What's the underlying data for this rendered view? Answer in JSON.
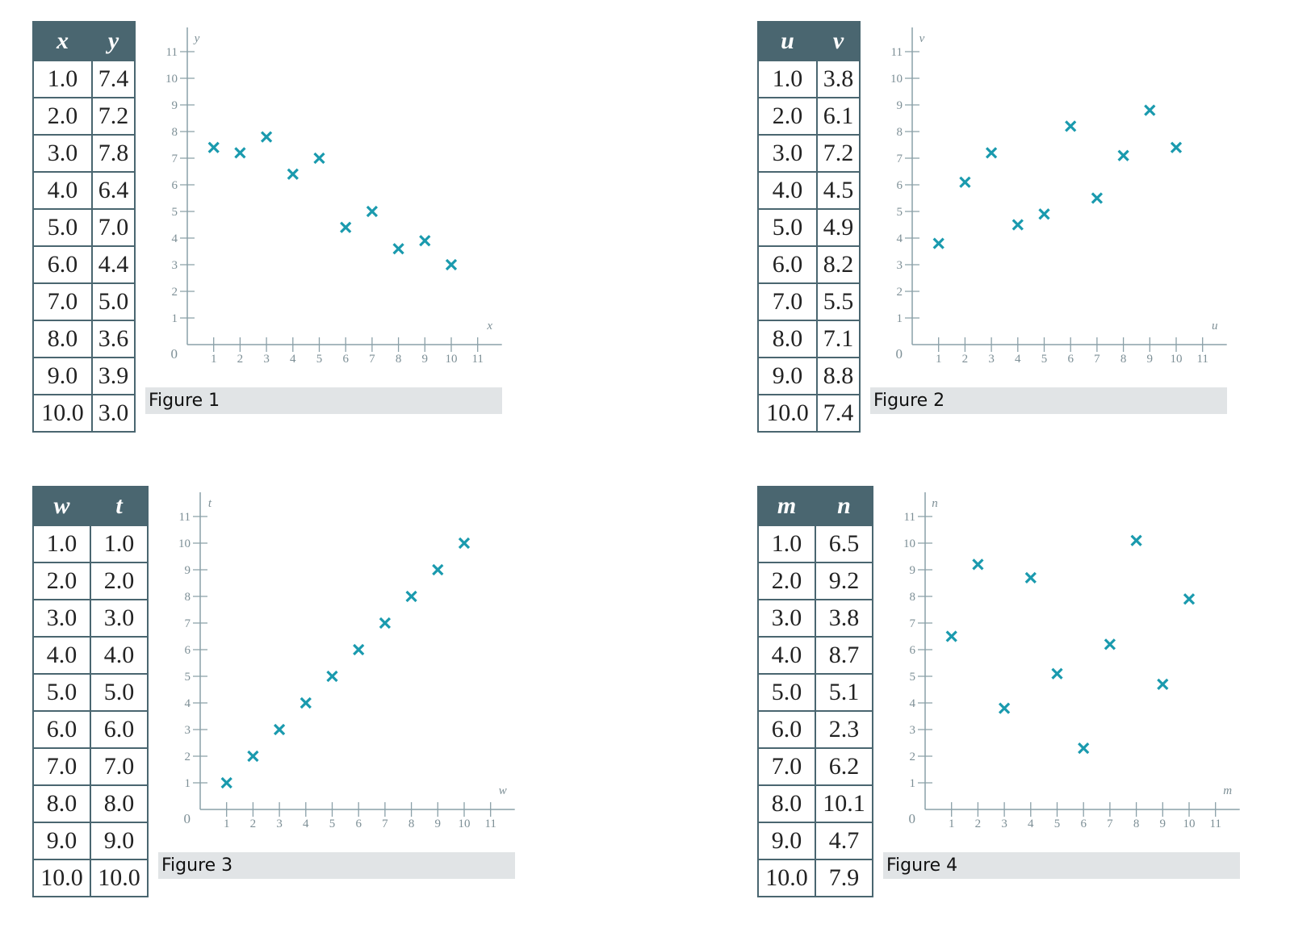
{
  "chart_data": [
    {
      "type": "scatter",
      "title": "",
      "caption": "Figure 1",
      "xlabel": "x",
      "ylabel": "y",
      "xlim": [
        0,
        11
      ],
      "ylim": [
        0,
        11
      ],
      "x_ticks": [
        "1",
        "2",
        "3",
        "4",
        "5",
        "6",
        "7",
        "8",
        "9",
        "10",
        "11"
      ],
      "y_ticks": [
        "1",
        "2",
        "3",
        "4",
        "5",
        "6",
        "7",
        "8",
        "9",
        "10",
        "11"
      ],
      "origin_label": "0",
      "marker_color": "#1a9aae",
      "table_headers": [
        "x",
        "y"
      ],
      "x": [
        1,
        2,
        3,
        4,
        5,
        6,
        7,
        8,
        9,
        10
      ],
      "y": [
        7.4,
        7.2,
        7.8,
        6.4,
        7.0,
        4.4,
        5.0,
        3.6,
        3.9,
        3.0
      ],
      "x_text": [
        "1.0",
        "2.0",
        "3.0",
        "4.0",
        "5.0",
        "6.0",
        "7.0",
        "8.0",
        "9.0",
        "10.0"
      ],
      "y_text": [
        "7.4",
        "7.2",
        "7.8",
        "6.4",
        "7.0",
        "4.4",
        "5.0",
        "3.6",
        "3.9",
        "3.0"
      ]
    },
    {
      "type": "scatter",
      "title": "",
      "caption": "Figure 2",
      "xlabel": "u",
      "ylabel": "v",
      "xlim": [
        0,
        11
      ],
      "ylim": [
        0,
        11
      ],
      "x_ticks": [
        "1",
        "2",
        "3",
        "4",
        "5",
        "6",
        "7",
        "8",
        "9",
        "10",
        "11"
      ],
      "y_ticks": [
        "1",
        "2",
        "3",
        "4",
        "5",
        "6",
        "7",
        "8",
        "9",
        "10",
        "11"
      ],
      "origin_label": "0",
      "marker_color": "#1a9aae",
      "table_headers": [
        "u",
        "v"
      ],
      "x": [
        1,
        2,
        3,
        4,
        5,
        6,
        7,
        8,
        9,
        10
      ],
      "y": [
        3.8,
        6.1,
        7.2,
        4.5,
        4.9,
        8.2,
        5.5,
        7.1,
        8.8,
        7.4
      ],
      "x_text": [
        "1.0",
        "2.0",
        "3.0",
        "4.0",
        "5.0",
        "6.0",
        "7.0",
        "8.0",
        "9.0",
        "10.0"
      ],
      "y_text": [
        "3.8",
        "6.1",
        "7.2",
        "4.5",
        "4.9",
        "8.2",
        "5.5",
        "7.1",
        "8.8",
        "7.4"
      ]
    },
    {
      "type": "scatter",
      "title": "",
      "caption": "Figure 3",
      "xlabel": "w",
      "ylabel": "t",
      "xlim": [
        0,
        11
      ],
      "ylim": [
        0,
        11
      ],
      "x_ticks": [
        "1",
        "2",
        "3",
        "4",
        "5",
        "6",
        "7",
        "8",
        "9",
        "10",
        "11"
      ],
      "y_ticks": [
        "1",
        "2",
        "3",
        "4",
        "5",
        "6",
        "7",
        "8",
        "9",
        "10",
        "11"
      ],
      "origin_label": "0",
      "marker_color": "#1a9aae",
      "table_headers": [
        "w",
        "t"
      ],
      "x": [
        1,
        2,
        3,
        4,
        5,
        6,
        7,
        8,
        9,
        10
      ],
      "y": [
        1.0,
        2.0,
        3.0,
        4.0,
        5.0,
        6.0,
        7.0,
        8.0,
        9.0,
        10.0
      ],
      "x_text": [
        "1.0",
        "2.0",
        "3.0",
        "4.0",
        "5.0",
        "6.0",
        "7.0",
        "8.0",
        "9.0",
        "10.0"
      ],
      "y_text": [
        "1.0",
        "2.0",
        "3.0",
        "4.0",
        "5.0",
        "6.0",
        "7.0",
        "8.0",
        "9.0",
        "10.0"
      ]
    },
    {
      "type": "scatter",
      "title": "",
      "caption": "Figure 4",
      "xlabel": "m",
      "ylabel": "n",
      "xlim": [
        0,
        11
      ],
      "ylim": [
        0,
        11
      ],
      "x_ticks": [
        "1",
        "2",
        "3",
        "4",
        "5",
        "6",
        "7",
        "8",
        "9",
        "10",
        "11"
      ],
      "y_ticks": [
        "1",
        "2",
        "3",
        "4",
        "5",
        "6",
        "7",
        "8",
        "9",
        "10",
        "11"
      ],
      "origin_label": "0",
      "marker_color": "#1a9aae",
      "table_headers": [
        "m",
        "n"
      ],
      "x": [
        1,
        2,
        3,
        4,
        5,
        6,
        7,
        8,
        9,
        10
      ],
      "y": [
        6.5,
        9.2,
        3.8,
        8.7,
        5.1,
        2.3,
        6.2,
        10.1,
        4.7,
        7.9
      ],
      "x_text": [
        "1.0",
        "2.0",
        "3.0",
        "4.0",
        "5.0",
        "6.0",
        "7.0",
        "8.0",
        "9.0",
        "10.0"
      ],
      "y_text": [
        "6.5",
        "9.2",
        "3.8",
        "8.7",
        "5.1",
        "2.3",
        "6.2",
        "10.1",
        "4.7",
        "7.9"
      ]
    }
  ]
}
